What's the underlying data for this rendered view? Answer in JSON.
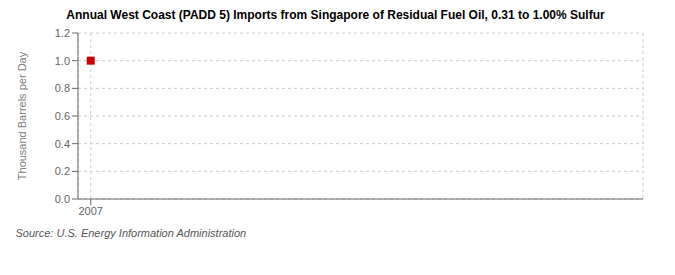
{
  "chart_data": {
    "type": "scatter",
    "title": "Annual West Coast (PADD 5) Imports from Singapore of Residual Fuel Oil, 0.31 to 1.00% Sulfur",
    "ylabel": "Thousand Barrels per Day",
    "annotations": [
      "Source: U.S. Energy Information Administration"
    ],
    "x": [
      2007
    ],
    "values": [
      1.0
    ],
    "color": "#cc0000",
    "marker": "square",
    "xlim": [
      2006.7,
      2020
    ],
    "xticks": [
      2007
    ],
    "ylim": [
      0.0,
      1.2
    ],
    "yticks": [
      {
        "value": 0.0,
        "label": "0.0"
      },
      0.2,
      0.4,
      0.6,
      0.8,
      {
        "value": 1.0,
        "label": "1.0"
      },
      1.2
    ],
    "grid": true
  }
}
